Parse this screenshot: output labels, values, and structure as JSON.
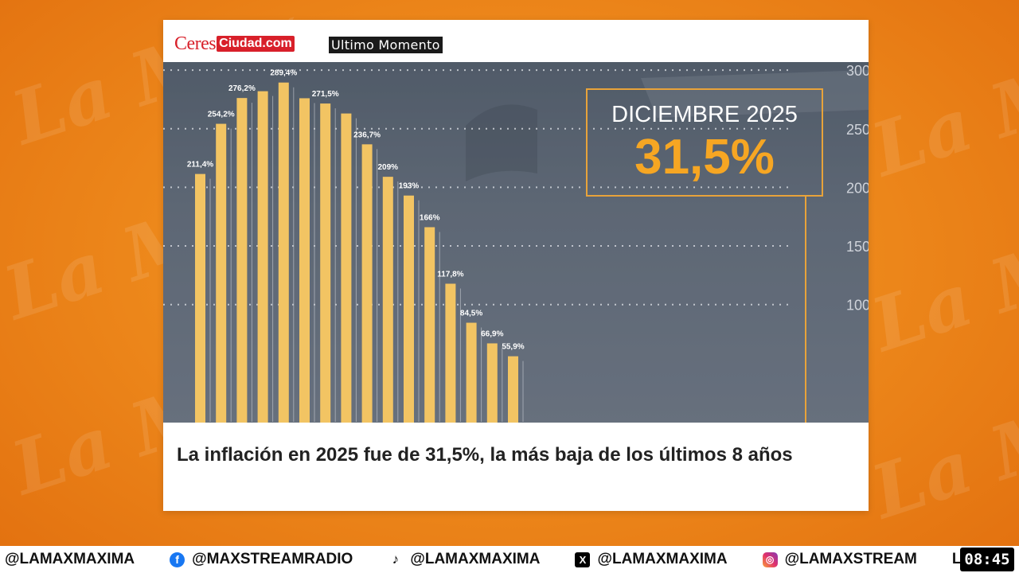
{
  "header": {
    "logo_ceres": "Ceres",
    "logo_ciudad": "Ciudad.com",
    "breaking_label": "Ultimo Momento"
  },
  "highlight": {
    "period": "DICIEMBRE 2025",
    "value": "31,5%"
  },
  "chart_data": {
    "type": "bar",
    "categories": [
      "",
      "",
      "",
      "",
      "",
      "",
      "",
      "",
      "",
      "",
      "",
      "",
      "",
      "",
      "",
      ""
    ],
    "values": [
      211.4,
      254.2,
      276.2,
      282,
      289.4,
      276,
      271.5,
      263,
      236.7,
      209,
      193,
      166,
      117.8,
      84.5,
      66.9,
      55.9
    ],
    "data_labels": [
      "211,4%",
      "254,2%",
      "276,2%",
      "",
      "289,4%",
      "",
      "271,5%",
      "",
      "236,7%",
      "209%",
      "193%",
      "166%",
      "117,8%",
      "84,5%",
      "66,9%",
      "55,9%"
    ],
    "y_ticks": [
      "300",
      "250",
      "200",
      "150",
      "100"
    ],
    "ylim": [
      0,
      300
    ],
    "grid": true,
    "bar_color": "#f2c463"
  },
  "caption": "La inflación en 2025 fue de 31,5%, la más baja de los últimos 8 años",
  "ticker": {
    "items": [
      {
        "icon": "none",
        "handle": "@LAMAXMAXIMA"
      },
      {
        "icon": "facebook-icon",
        "handle": "@MAXSTREAMRADIO"
      },
      {
        "icon": "tiktok-icon",
        "handle": "@LAMAXMAXIMA"
      },
      {
        "icon": "x-icon",
        "handle": "@LAMAXMAXIMA"
      },
      {
        "icon": "instagram-icon",
        "handle": "@LAMAXSTREAM"
      },
      {
        "icon": "none",
        "handle": "LA"
      }
    ]
  },
  "clock": "08:45",
  "watermark": "La Max"
}
